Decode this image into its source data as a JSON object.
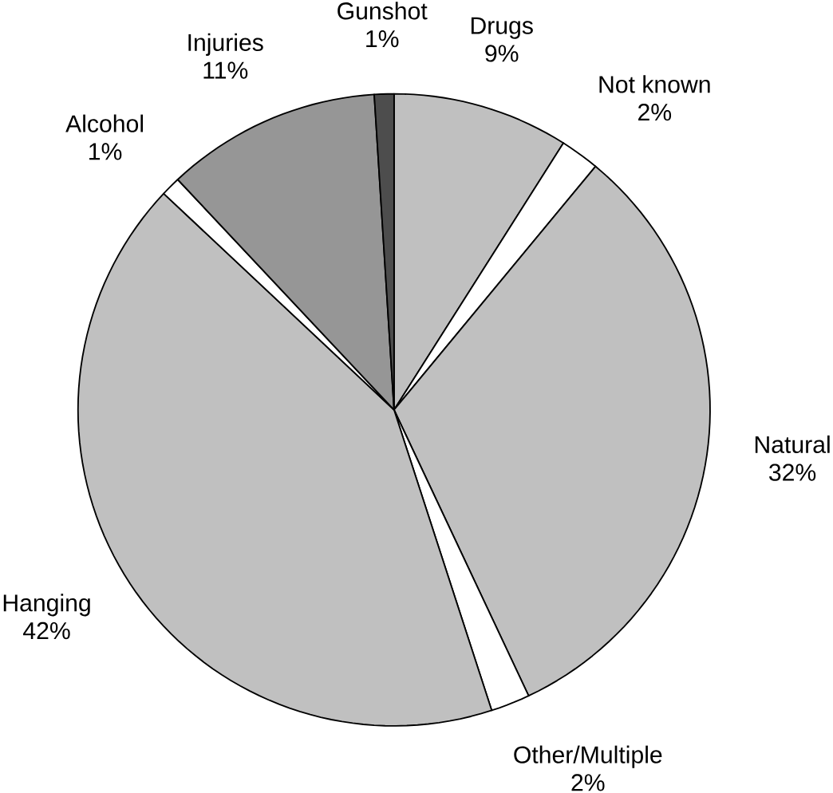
{
  "chart_data": {
    "type": "pie",
    "categories": [
      "Drugs",
      "Not known",
      "Natural",
      "Other/Multiple",
      "Hanging",
      "Alcohol",
      "Injuries",
      "Gunshot"
    ],
    "values": [
      9,
      2,
      32,
      2,
      42,
      1,
      11,
      1
    ],
    "value_labels": [
      "9%",
      "2%",
      "32%",
      "2%",
      "42%",
      "1%",
      "11%",
      "1%"
    ],
    "colors": [
      "#c0c0c0",
      "#ffffff",
      "#c0c0c0",
      "#ffffff",
      "#c0c0c0",
      "#ffffff",
      "#969696",
      "#4d4d4d"
    ]
  }
}
